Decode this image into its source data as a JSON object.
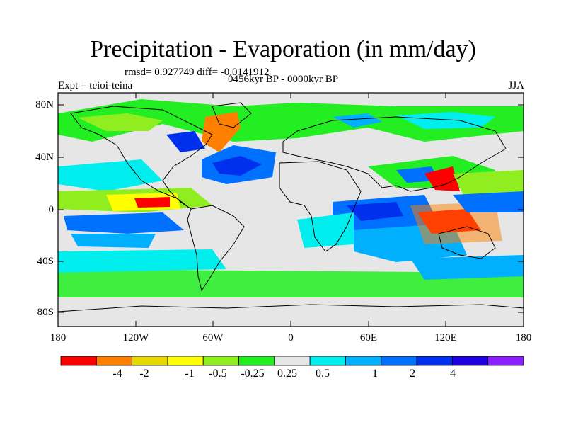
{
  "title": "Precipitation - Evaporation (in mm/day)",
  "stats": "rmsd= 0.927749 diff= -0.0141912",
  "period": "0456kyr BP - 0000kyr BP",
  "experiment": "Expt = teioi-teina",
  "season": "JJA",
  "axes": {
    "y_ticks": [
      "80N",
      "40N",
      "0",
      "40S",
      "80S"
    ],
    "x_ticks": [
      "180",
      "120W",
      "60W",
      "0",
      "60E",
      "120E",
      "180"
    ]
  },
  "colorbar": {
    "colors": [
      "#ff0000",
      "#ff8000",
      "#e6d800",
      "#ffff00",
      "#90ee20",
      "#22ee22",
      "#e6e6e6",
      "#00eeee",
      "#00b0ff",
      "#0070ff",
      "#0030ee",
      "#2000dd",
      "#8a20ff"
    ],
    "labels": [
      "-4",
      "-2",
      "-1",
      "-0.5",
      "-0.25",
      "0.25",
      "0.5",
      "1",
      "2",
      "4"
    ]
  },
  "map": {
    "background_color": "#e6e6e6",
    "projection": "cylindrical equidistant",
    "lon_range": [
      -180,
      180
    ],
    "lat_range": [
      -90,
      90
    ]
  }
}
